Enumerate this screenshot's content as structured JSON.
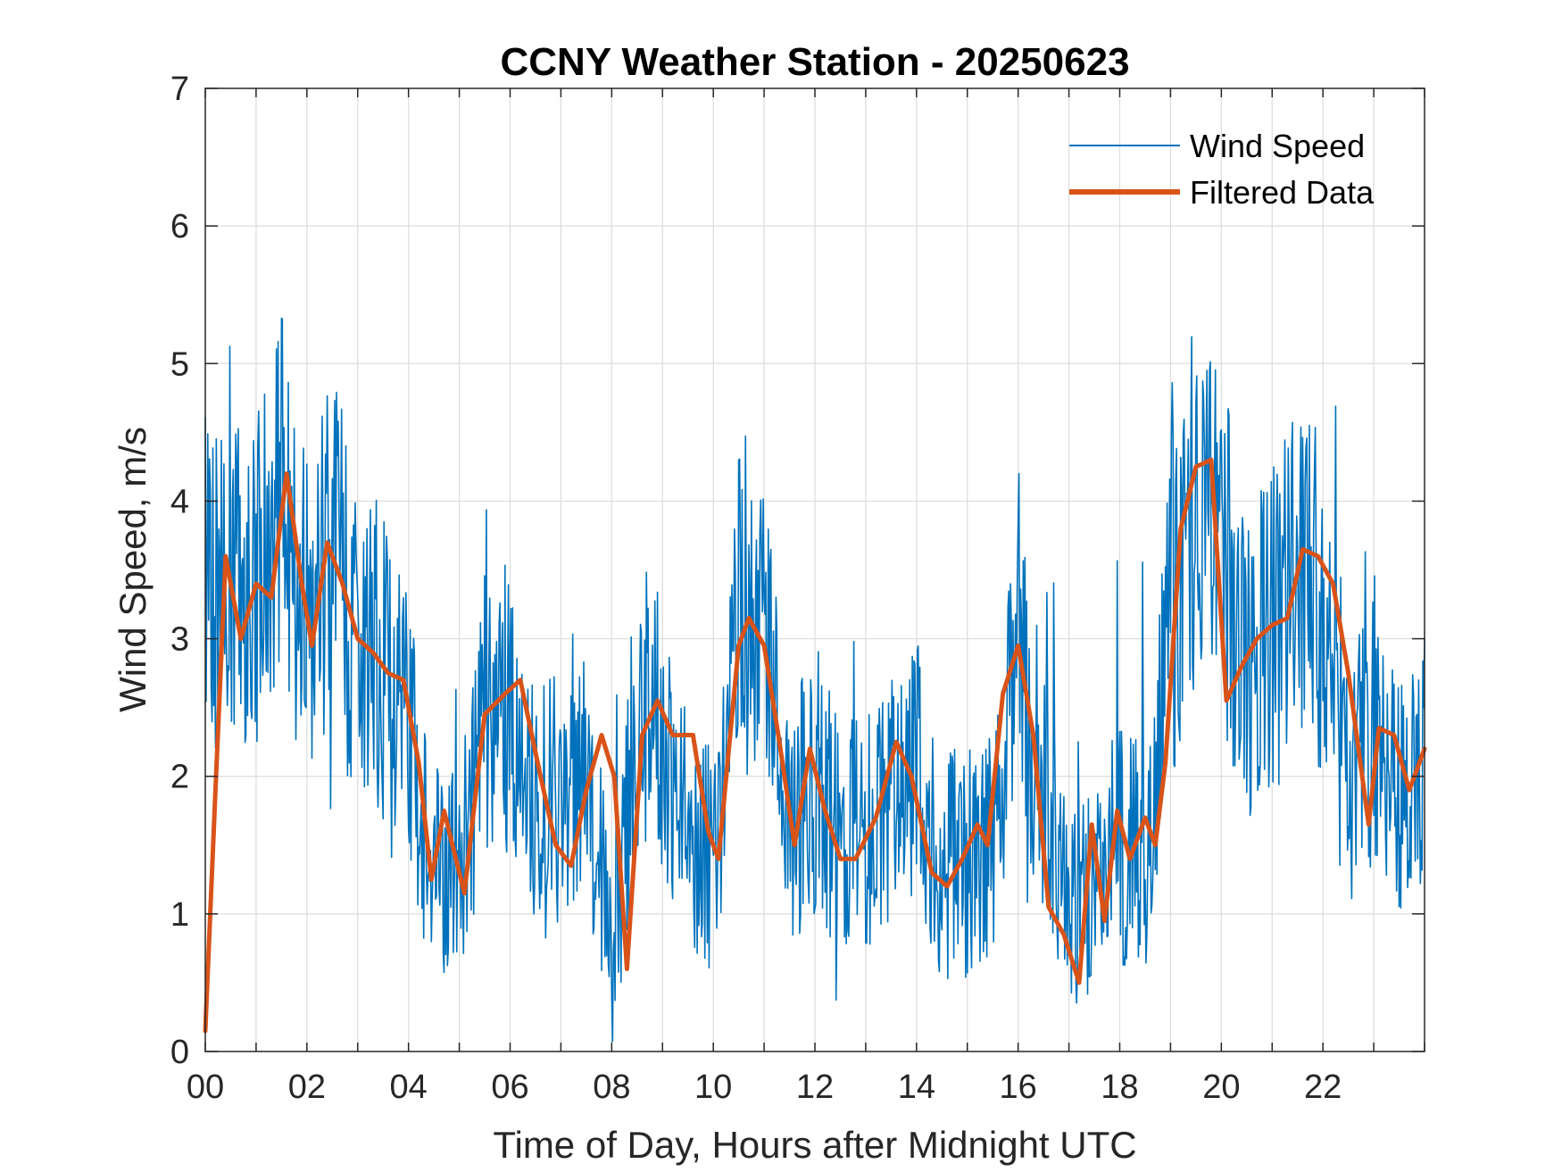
{
  "chart_data": {
    "type": "line",
    "title": "CCNY Weather Station - 20250623",
    "xlabel": "Time of Day, Hours after Midnight UTC",
    "ylabel": "Wind Speed, m/s",
    "xlim": [
      0,
      24
    ],
    "ylim": [
      0,
      7
    ],
    "grid": true,
    "legend_position": "top-right",
    "x_ticks": [
      0,
      2,
      4,
      6,
      8,
      10,
      12,
      14,
      16,
      18,
      20,
      22
    ],
    "x_tick_labels": [
      "00",
      "02",
      "04",
      "06",
      "08",
      "10",
      "12",
      "14",
      "16",
      "18",
      "20",
      "22"
    ],
    "y_ticks": [
      0,
      1,
      2,
      3,
      4,
      5,
      6,
      7
    ],
    "y_tick_labels": [
      "0",
      "1",
      "2",
      "3",
      "4",
      "5",
      "6",
      "7"
    ],
    "colors": {
      "wind": "#0072BD",
      "filtered": "#D95319"
    },
    "series": [
      {
        "name": "Wind Speed",
        "style": "thin",
        "x": [
          0,
          0.5,
          1,
          1.5,
          2,
          2.5,
          3,
          3.5,
          4,
          4.5,
          5,
          5.5,
          6,
          6.5,
          7,
          7.5,
          8,
          8.5,
          9,
          9.5,
          10,
          10.5,
          11,
          11.5,
          12,
          12.5,
          13,
          13.5,
          14,
          14.5,
          15,
          15.5,
          16,
          16.5,
          17,
          17.5,
          18,
          18.5,
          19,
          19.5,
          20,
          20.5,
          21,
          21.5,
          22,
          22.5,
          23,
          23.5,
          24
        ],
        "values": [
          3.5,
          3.4,
          3.3,
          4.1,
          3.2,
          3.6,
          3.0,
          2.8,
          2.4,
          1.3,
          1.3,
          2.5,
          2.6,
          1.6,
          1.9,
          2.2,
          0.6,
          2.5,
          2.3,
          1.6,
          1.4,
          3.1,
          2.9,
          1.6,
          2.0,
          1.5,
          1.6,
          1.9,
          2.1,
          1.3,
          1.4,
          1.5,
          2.8,
          1.9,
          0.9,
          1.2,
          1.5,
          1.4,
          3.2,
          4.1,
          3.6,
          2.8,
          3.0,
          3.6,
          3.3,
          2.0,
          2.4,
          1.9,
          2.2
        ]
      },
      {
        "name": "Filtered Data",
        "style": "thick",
        "x": [
          0,
          0.2,
          0.4,
          0.7,
          1.0,
          1.3,
          1.6,
          1.9,
          2.1,
          2.4,
          2.7,
          3.0,
          3.3,
          3.6,
          3.9,
          4.2,
          4.45,
          4.7,
          5.1,
          5.5,
          5.9,
          6.2,
          6.6,
          6.9,
          7.2,
          7.5,
          7.8,
          8.05,
          8.3,
          8.6,
          8.9,
          9.2,
          9.6,
          9.9,
          10.1,
          10.5,
          10.7,
          11.0,
          11.3,
          11.6,
          11.9,
          12.2,
          12.5,
          12.8,
          13.2,
          13.6,
          13.9,
          14.3,
          14.6,
          14.9,
          15.2,
          15.4,
          15.7,
          16.0,
          16.3,
          16.6,
          16.9,
          17.2,
          17.45,
          17.7,
          17.95,
          18.2,
          18.5,
          18.7,
          18.9,
          19.2,
          19.5,
          19.8,
          20.1,
          20.4,
          20.7,
          21.0,
          21.3,
          21.6,
          21.9,
          22.2,
          22.5,
          22.9,
          23.1,
          23.4,
          23.7,
          24.0
        ],
        "values": [
          0.15,
          1.9,
          3.6,
          3.0,
          3.4,
          3.3,
          4.2,
          3.4,
          2.95,
          3.7,
          3.4,
          3.0,
          2.9,
          2.75,
          2.7,
          2.1,
          1.25,
          1.75,
          1.15,
          2.45,
          2.6,
          2.7,
          2.0,
          1.5,
          1.35,
          1.9,
          2.3,
          2.0,
          0.6,
          2.3,
          2.55,
          2.3,
          2.3,
          1.6,
          1.4,
          2.95,
          3.15,
          2.95,
          2.25,
          1.5,
          2.2,
          1.75,
          1.4,
          1.4,
          1.7,
          2.25,
          2.0,
          1.3,
          1.2,
          1.4,
          1.65,
          1.5,
          2.6,
          2.95,
          2.3,
          1.05,
          0.85,
          0.5,
          1.65,
          0.95,
          1.75,
          1.4,
          1.7,
          1.5,
          2.1,
          3.8,
          4.25,
          4.3,
          2.55,
          2.8,
          3.0,
          3.1,
          3.15,
          3.65,
          3.6,
          3.4,
          2.75,
          1.65,
          2.35,
          2.3,
          1.9,
          2.2
        ]
      }
    ]
  }
}
